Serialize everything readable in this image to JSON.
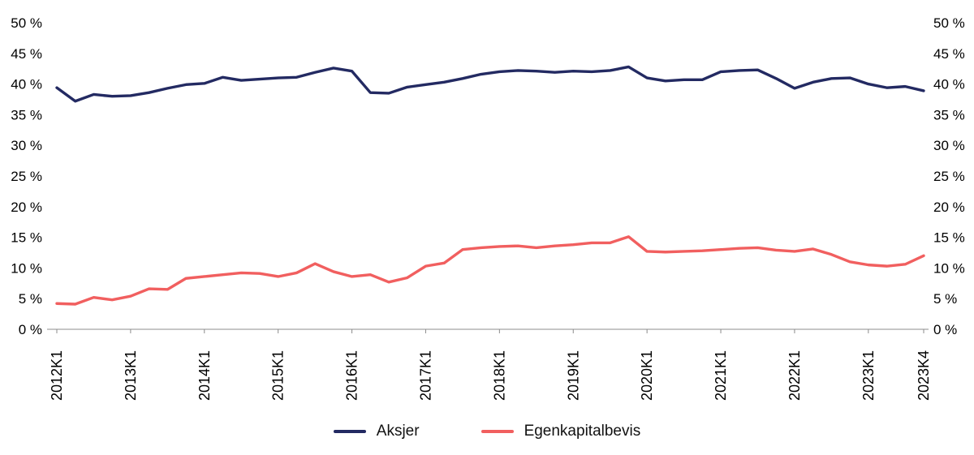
{
  "chart_data": {
    "type": "line",
    "title": "",
    "xlabel": "",
    "ylabel": "",
    "ylim": [
      0,
      50
    ],
    "y_ticks": [
      0,
      5,
      10,
      15,
      20,
      25,
      30,
      35,
      40,
      45,
      50
    ],
    "y_tick_suffix": " %",
    "y_axis_sides": "both",
    "grid": "off",
    "legend_position": "bottom",
    "x_unit": "quarter",
    "x_ticks": [
      {
        "label": "2012K1",
        "index": 0
      },
      {
        "label": "2013K1",
        "index": 4
      },
      {
        "label": "2014K1",
        "index": 8
      },
      {
        "label": "2015K1",
        "index": 12
      },
      {
        "label": "2016K1",
        "index": 16
      },
      {
        "label": "2017K1",
        "index": 20
      },
      {
        "label": "2018K1",
        "index": 24
      },
      {
        "label": "2019K1",
        "index": 28
      },
      {
        "label": "2020K1",
        "index": 32
      },
      {
        "label": "2021K1",
        "index": 36
      },
      {
        "label": "2022K1",
        "index": 40
      },
      {
        "label": "2023K1",
        "index": 44
      },
      {
        "label": "2023K4",
        "index": 47
      }
    ],
    "series": [
      {
        "id": "aksjer-line",
        "name": "Aksjer",
        "color": "#232a62",
        "values": [
          39.4,
          37.2,
          38.3,
          38.0,
          38.1,
          38.6,
          39.3,
          39.9,
          40.1,
          41.1,
          40.6,
          40.8,
          41.0,
          41.1,
          41.9,
          42.6,
          42.1,
          38.6,
          38.5,
          39.5,
          39.9,
          40.3,
          40.9,
          41.6,
          42.0,
          42.2,
          42.1,
          41.9,
          42.1,
          42.0,
          42.2,
          42.8,
          41.0,
          40.5,
          40.7,
          40.7,
          42.0,
          42.2,
          42.3,
          40.9,
          39.3,
          40.3,
          40.9,
          41.0,
          40.0,
          39.4,
          39.6,
          38.9
        ]
      },
      {
        "id": "egenkapitalbevis-line",
        "name": "Egenkapitalbevis",
        "color": "#f15f5f",
        "values": [
          4.2,
          4.1,
          5.2,
          4.8,
          5.4,
          6.6,
          6.5,
          8.3,
          8.6,
          8.9,
          9.2,
          9.1,
          8.6,
          9.2,
          10.7,
          9.4,
          8.6,
          8.9,
          7.7,
          8.4,
          10.3,
          10.8,
          13.0,
          13.3,
          13.5,
          13.6,
          13.3,
          13.6,
          13.8,
          14.1,
          14.1,
          15.1,
          12.7,
          12.6,
          12.7,
          12.8,
          13.0,
          13.2,
          13.3,
          12.9,
          12.7,
          13.1,
          12.2,
          11.0,
          10.5,
          10.3,
          10.6,
          12.0
        ]
      }
    ]
  },
  "axis_color": "#8c8c8c"
}
